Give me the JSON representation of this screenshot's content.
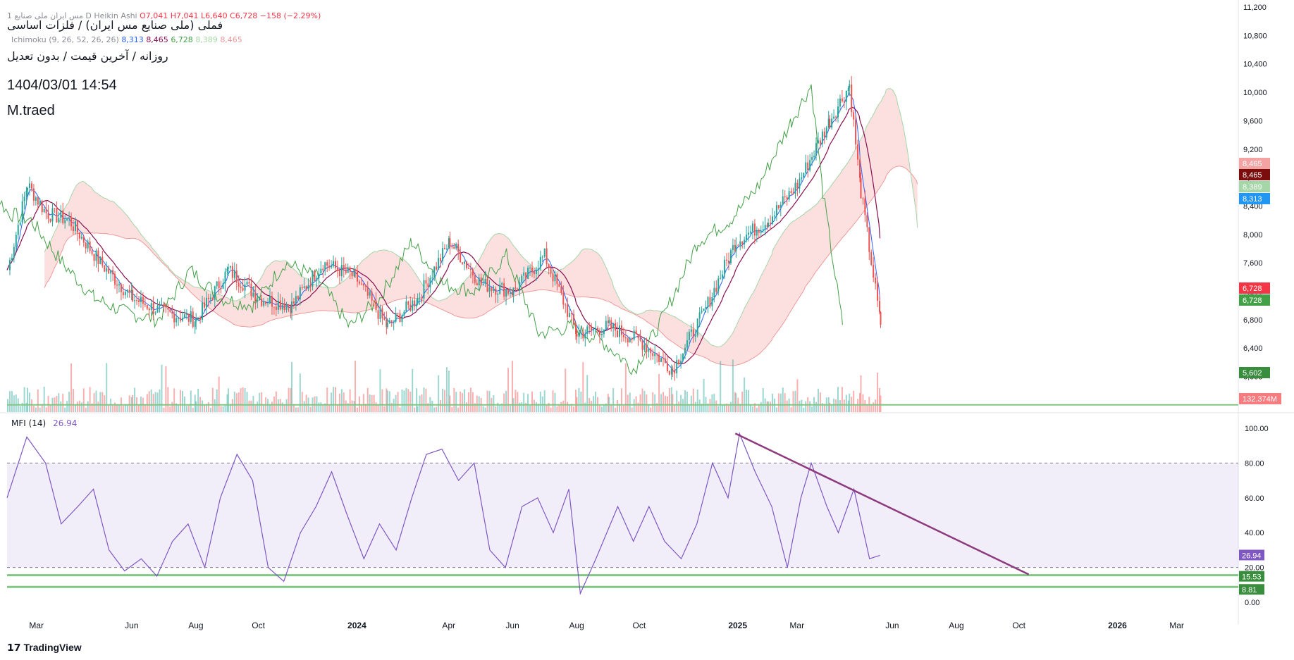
{
  "header": {
    "symbol_line": "فملی (ملی صنایع مس ایران) / فلزات اساسی",
    "ohlc_prefix": "1 مس ایران ملی صنایع D Heikin Ashi",
    "ohlc_values": "O7,041  H7,041  L6,640  C6,728  −158 (−2.29%)",
    "timeframe_line": "روزانه / آخرین قیمت / بدون تعدیل",
    "ichimoku_label": "Ichimoku (9, 26, 52, 26, 26)",
    "ichimoku_values": [
      "8,313",
      "8,465",
      "6,728",
      "8,389",
      "8,465"
    ],
    "date_text": "1404/03/01 14:54",
    "author": "M.traed"
  },
  "mfi": {
    "label": "MFI (14)",
    "value": "26.94"
  },
  "footer": {
    "brand": "TradingView"
  },
  "colors": {
    "up": "#26a69a",
    "down": "#ef5350",
    "base": "#880e4f",
    "conversion": "#2962ff",
    "lagging": "#43a047",
    "cloud_up": "#a5d6a7",
    "cloud_down": "#f8bbbb",
    "mfi_line": "#7e57c2",
    "trendline": "#8e3a7e",
    "support": "#81c784"
  },
  "chart_data": [
    {
      "type": "candlestick",
      "title": "فملی (ملی صنایع مس ایران) / فلزات اساسی",
      "y_ticks": [
        6000,
        6400,
        6800,
        7200,
        7600,
        8000,
        8400,
        8800,
        9200,
        9600,
        10000,
        10400,
        10800,
        11200
      ],
      "y_tick_labels": [
        "6,000",
        "6,400",
        "6,800",
        "7,200",
        "7,600",
        "8,000",
        "8,400",
        "8,800",
        "9,200",
        "9,600",
        "10,000",
        "10,400",
        "10,800",
        "11,200"
      ],
      "ylim": [
        5500,
        11200
      ],
      "x_tick_labels": [
        "Mar",
        "Jun",
        "Aug",
        "Oct",
        "2024",
        "Apr",
        "Jun",
        "Aug",
        "Oct",
        "2025",
        "Mar",
        "Jun",
        "Aug",
        "Oct",
        "2026",
        "Mar"
      ],
      "bold_x_ticks": [
        "2024",
        "2025",
        "2026"
      ],
      "price_path": [
        [
          "2023-02-01",
          7500
        ],
        [
          "2023-02-20",
          8700
        ],
        [
          "2023-03-10",
          8300
        ],
        [
          "2023-04-01",
          8200
        ],
        [
          "2023-05-01",
          7600
        ],
        [
          "2023-06-01",
          7100
        ],
        [
          "2023-07-01",
          6900
        ],
        [
          "2023-08-01",
          6800
        ],
        [
          "2023-09-01",
          7500
        ],
        [
          "2023-10-01",
          7100
        ],
        [
          "2023-11-01",
          7000
        ],
        [
          "2023-12-01",
          7600
        ],
        [
          "2024-01-01",
          7400
        ],
        [
          "2024-02-01",
          6700
        ],
        [
          "2024-03-01",
          7100
        ],
        [
          "2024-04-01",
          7900
        ],
        [
          "2024-05-01",
          7300
        ],
        [
          "2024-06-01",
          7200
        ],
        [
          "2024-07-01",
          7700
        ],
        [
          "2024-08-01",
          6600
        ],
        [
          "2024-09-01",
          6700
        ],
        [
          "2024-10-01",
          6500
        ],
        [
          "2024-11-01",
          6100
        ],
        [
          "2024-12-01",
          6900
        ],
        [
          "2025-01-01",
          7900
        ],
        [
          "2025-02-01",
          8200
        ],
        [
          "2025-03-01",
          8700
        ],
        [
          "2025-04-01",
          9600
        ],
        [
          "2025-04-20",
          10100
        ],
        [
          "2025-05-01",
          8600
        ],
        [
          "2025-05-20",
          6728
        ]
      ],
      "horizontal_line": 5602,
      "price_labels": [
        {
          "text": "8,465",
          "color": "#f4a3a3"
        },
        {
          "text": "8,465",
          "color": "#7b0d0d"
        },
        {
          "text": "8,389",
          "color": "#a5d6a7"
        },
        {
          "text": "8,313",
          "color": "#2196f3"
        },
        {
          "text": "6,728",
          "color": "#f23645"
        },
        {
          "text": "6,728",
          "color": "#43a047"
        },
        {
          "text": "5,602",
          "color": "#388e3c"
        },
        {
          "text": "132.374M",
          "color": "#f77c80"
        }
      ]
    },
    {
      "type": "line",
      "title": "MFI (14)",
      "ylim": [
        0,
        100
      ],
      "y_ticks": [
        0,
        20,
        40,
        60,
        80,
        100
      ],
      "y_tick_labels": [
        "0.00",
        "20.00",
        "40.00",
        "60.00",
        "80.00",
        "100.00"
      ],
      "band": [
        20,
        80
      ],
      "series": [
        {
          "name": "MFI (14)",
          "values": [
            [
              "2023-02-01",
              60
            ],
            [
              "2023-02-20",
              95
            ],
            [
              "2023-03-10",
              80
            ],
            [
              "2023-03-25",
              45
            ],
            [
              "2023-04-10",
              55
            ],
            [
              "2023-04-25",
              65
            ],
            [
              "2023-05-10",
              30
            ],
            [
              "2023-05-25",
              18
            ],
            [
              "2023-06-10",
              25
            ],
            [
              "2023-06-25",
              15
            ],
            [
              "2023-07-10",
              35
            ],
            [
              "2023-07-25",
              45
            ],
            [
              "2023-08-10",
              20
            ],
            [
              "2023-08-25",
              60
            ],
            [
              "2023-09-10",
              85
            ],
            [
              "2023-09-25",
              70
            ],
            [
              "2023-10-10",
              20
            ],
            [
              "2023-10-25",
              12
            ],
            [
              "2023-11-10",
              40
            ],
            [
              "2023-11-25",
              55
            ],
            [
              "2023-12-10",
              75
            ],
            [
              "2023-12-25",
              50
            ],
            [
              "2024-01-10",
              25
            ],
            [
              "2024-01-25",
              45
            ],
            [
              "2024-02-10",
              30
            ],
            [
              "2024-02-25",
              60
            ],
            [
              "2024-03-10",
              85
            ],
            [
              "2024-03-25",
              88
            ],
            [
              "2024-04-10",
              70
            ],
            [
              "2024-04-25",
              80
            ],
            [
              "2024-05-10",
              30
            ],
            [
              "2024-05-25",
              20
            ],
            [
              "2024-06-10",
              55
            ],
            [
              "2024-06-25",
              60
            ],
            [
              "2024-07-10",
              40
            ],
            [
              "2024-07-25",
              65
            ],
            [
              "2024-08-05",
              5
            ],
            [
              "2024-08-20",
              25
            ],
            [
              "2024-09-10",
              55
            ],
            [
              "2024-09-25",
              35
            ],
            [
              "2024-10-10",
              55
            ],
            [
              "2024-10-25",
              35
            ],
            [
              "2024-11-10",
              25
            ],
            [
              "2024-11-25",
              45
            ],
            [
              "2024-12-10",
              80
            ],
            [
              "2024-12-25",
              60
            ],
            [
              "2025-01-05",
              97
            ],
            [
              "2025-01-20",
              75
            ],
            [
              "2025-02-05",
              55
            ],
            [
              "2025-02-20",
              20
            ],
            [
              "2025-03-05",
              60
            ],
            [
              "2025-03-15",
              80
            ],
            [
              "2025-03-30",
              55
            ],
            [
              "2025-04-10",
              40
            ],
            [
              "2025-04-25",
              65
            ],
            [
              "2025-05-10",
              25
            ],
            [
              "2025-05-20",
              26.94
            ]
          ]
        }
      ],
      "trendline": [
        [
          "2025-01-01",
          97
        ],
        [
          "2025-10-10",
          16
        ]
      ],
      "horizontal_lines": [
        15.53,
        8.81
      ],
      "value_labels": [
        {
          "text": "26.94",
          "color": "#7e57c2"
        },
        {
          "text": "20.00",
          "color": "#ffffff"
        },
        {
          "text": "15.53",
          "color": "#388e3c"
        },
        {
          "text": "8.81",
          "color": "#388e3c"
        }
      ]
    }
  ]
}
